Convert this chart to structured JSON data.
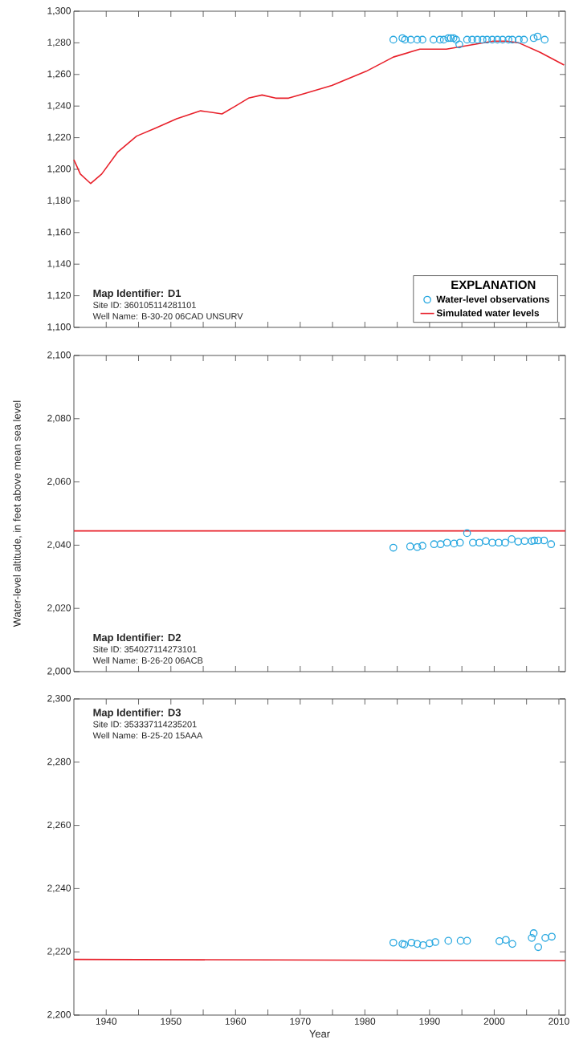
{
  "chart_data": [
    {
      "type": "scatter",
      "xlim": [
        1935,
        2011
      ],
      "ylim": [
        1100,
        1300
      ],
      "xticks": [
        1940,
        {
          "value": 1945,
          "label": null
        },
        1950,
        {
          "value": 1955,
          "label": null
        },
        1960,
        {
          "value": 1965,
          "label": null
        },
        1970,
        {
          "value": 1975,
          "label": null
        },
        1980,
        {
          "value": 1985,
          "label": null
        },
        1990,
        {
          "value": 1995,
          "label": null
        },
        2000,
        {
          "value": 2005,
          "label": null
        },
        2010
      ],
      "yticks": [
        {
          "value": 1100,
          "label": "1,100"
        },
        {
          "value": 1120,
          "label": "1,120"
        },
        {
          "value": 1140,
          "label": "1,140"
        },
        {
          "value": 1160,
          "label": "1,160"
        },
        {
          "value": 1180,
          "label": "1,180"
        },
        {
          "value": 1200,
          "label": "1,200"
        },
        {
          "value": 1220,
          "label": "1,220"
        },
        {
          "value": 1240,
          "label": "1,240"
        },
        {
          "value": 1260,
          "label": "1,260"
        },
        {
          "value": 1280,
          "label": "1,280"
        },
        {
          "value": 1300,
          "label": "1,300"
        }
      ],
      "tick_labels": "y",
      "legend": "bottom right",
      "legend_title": "EXPLANATION",
      "annotations": [
        "Map Identifier: D1",
        "Site ID: 360105114281101",
        "Well Name: B-30-20 06CAD UNSURV"
      ],
      "series": [
        {
          "name": "Water-level observations",
          "marker": "circle",
          "color": "#29a8e0",
          "x": [
            1984.4,
            1985.8,
            1986.2,
            1987.1,
            1988.1,
            1988.9,
            1990.6,
            1991.6,
            1992.2,
            1992.9,
            1993.3,
            1993.7,
            1994.1,
            1994.6,
            1995.8,
            1996.6,
            1997.4,
            1998.2,
            1998.9,
            1999.7,
            2000.5,
            2001.3,
            2002.2,
            2002.8,
            2003.8,
            2004.6,
            2006.1,
            2006.7,
            2007.8
          ],
          "values": [
            1282,
            1283,
            1282,
            1282,
            1282,
            1282,
            1282,
            1282,
            1282,
            1283,
            1283,
            1283,
            1282,
            1279,
            1282,
            1282,
            1282,
            1282,
            1282,
            1282,
            1282,
            1282,
            1282,
            1282,
            1282,
            1282,
            1283,
            1284,
            1282
          ]
        },
        {
          "name": "Simulated water levels",
          "type": "line",
          "color": "#e8202a",
          "x": [
            1935,
            1936,
            1937.6,
            1939.3,
            1941.8,
            1944.7,
            1947.6,
            1950.9,
            1954.6,
            1956.3,
            1957.9,
            1960,
            1962,
            1964.1,
            1966.2,
            1968.2,
            1970.7,
            1974.9,
            1980.2,
            1984.4,
            1988.5,
            1992.6,
            1995.5,
            1999.7,
            2002.1,
            2003.8,
            2007.1,
            2010.8
          ],
          "values": [
            1206,
            1197,
            1191,
            1197,
            1211,
            1221,
            1226,
            1232,
            1237,
            1236,
            1235,
            1240,
            1245,
            1247,
            1245,
            1245,
            1248,
            1253,
            1262,
            1271,
            1276,
            1276,
            1278,
            1281,
            1281,
            1280,
            1274,
            1266
          ]
        }
      ]
    },
    {
      "type": "scatter",
      "xlim": [
        1935,
        2011
      ],
      "ylim": [
        2000,
        2100
      ],
      "xticks": [
        1940,
        {
          "value": 1945,
          "label": null
        },
        1950,
        {
          "value": 1955,
          "label": null
        },
        1960,
        {
          "value": 1965,
          "label": null
        },
        1970,
        {
          "value": 1975,
          "label": null
        },
        1980,
        {
          "value": 1985,
          "label": null
        },
        1990,
        {
          "value": 1995,
          "label": null
        },
        2000,
        {
          "value": 2005,
          "label": null
        },
        2010
      ],
      "yticks": [
        {
          "value": 2000,
          "label": "2,000"
        },
        {
          "value": 2020,
          "label": "2,020"
        },
        {
          "value": 2040,
          "label": "2,040"
        },
        {
          "value": 2060,
          "label": "2,060"
        },
        {
          "value": 2080,
          "label": "2,080"
        },
        {
          "value": 2100,
          "label": "2,100"
        }
      ],
      "tick_labels": "y",
      "ylabel": "Water-level altitude, in feet above mean sea level",
      "annotations": [
        "Map Identifier: D2",
        "Site ID: 354027114273101",
        "Well Name: B-26-20 06ACB"
      ],
      "series": [
        {
          "marker": "circle",
          "color": "#29a8e0",
          "x": [
            1984.4,
            1987.0,
            1988.1,
            1988.9,
            1990.7,
            1991.7,
            1992.7,
            1993.8,
            1994.7,
            1995.8,
            1996.7,
            1997.7,
            1998.7,
            1999.7,
            2000.7,
            2001.7,
            2002.7,
            2003.7,
            2004.7,
            2005.8,
            2006.2,
            2006.8,
            2007.7,
            2008.8
          ],
          "values": [
            2039.2,
            2039.6,
            2039.4,
            2039.8,
            2040.3,
            2040.3,
            2040.8,
            2040.5,
            2040.8,
            2043.8,
            2040.8,
            2040.8,
            2041.3,
            2040.8,
            2040.8,
            2040.8,
            2041.9,
            2041.1,
            2041.3,
            2041.3,
            2041.5,
            2041.5,
            2041.5,
            2040.3
          ]
        },
        {
          "type": "line",
          "color": "#e8202a",
          "x": [
            1935,
            2011
          ],
          "values": [
            2044.5,
            2044.5
          ]
        }
      ]
    },
    {
      "type": "scatter",
      "xlim": [
        1935,
        2011
      ],
      "ylim": [
        2200,
        2300
      ],
      "xticks": [
        1940,
        {
          "value": 1945,
          "label": null
        },
        1950,
        {
          "value": 1955,
          "label": null
        },
        1960,
        {
          "value": 1965,
          "label": null
        },
        1970,
        {
          "value": 1975,
          "label": null
        },
        1980,
        {
          "value": 1985,
          "label": null
        },
        1990,
        {
          "value": 1995,
          "label": null
        },
        2000,
        {
          "value": 2005,
          "label": null
        },
        2010
      ],
      "yticks": [
        {
          "value": 2200,
          "label": "2,200"
        },
        {
          "value": 2220,
          "label": "2,220"
        },
        {
          "value": 2240,
          "label": "2,240"
        },
        {
          "value": 2260,
          "label": "2,260"
        },
        {
          "value": 2280,
          "label": "2,280"
        },
        {
          "value": 2300,
          "label": "2,300"
        }
      ],
      "xlabel": "Year",
      "annotations": [
        "Map Identifier: D3",
        "Site ID: 353337114235201",
        "Well Name: B-25-20 15AAA"
      ],
      "series": [
        {
          "marker": "circle",
          "color": "#29a8e0",
          "x": [
            1984.4,
            1985.8,
            1986.1,
            1987.2,
            1988.1,
            1989.0,
            1990.0,
            1990.9,
            1992.9,
            1994.8,
            1995.8,
            2000.8,
            2001.8,
            2002.8,
            2005.8,
            2006.1,
            2006.8,
            2007.9,
            2008.9
          ],
          "values": [
            2222.9,
            2222.5,
            2222.3,
            2222.9,
            2222.5,
            2222.1,
            2222.7,
            2223.1,
            2223.5,
            2223.5,
            2223.5,
            2223.4,
            2223.8,
            2222.5,
            2224.4,
            2225.9,
            2221.5,
            2224.4,
            2224.8
          ]
        },
        {
          "type": "line",
          "color": "#e8202a",
          "x": [
            1935,
            2011
          ],
          "values": [
            2217.6,
            2217.2
          ]
        }
      ]
    }
  ]
}
